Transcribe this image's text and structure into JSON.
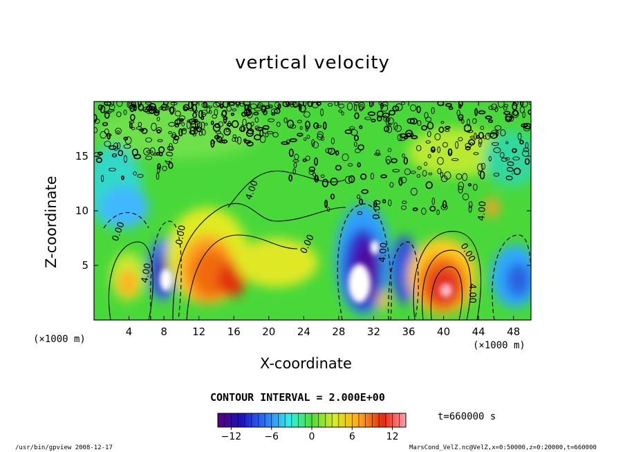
{
  "chart_data": {
    "type": "heatmap",
    "title": "vertical velocity",
    "xlabel": "X-coordinate",
    "ylabel": "Z-coordinate",
    "x_unit_left": "(×1000 m)",
    "x_unit_right": "(×1000 m)",
    "xlim": [
      0,
      50
    ],
    "ylim": [
      0,
      20
    ],
    "x_ticks": [
      4,
      8,
      12,
      16,
      20,
      24,
      28,
      32,
      36,
      40,
      44,
      48
    ],
    "y_ticks": [
      5,
      10,
      15
    ],
    "colorbar": {
      "range": [
        -14,
        14
      ],
      "ticks": [
        -12,
        -6,
        0,
        6,
        12
      ],
      "tick_labels": [
        "−12",
        "−6",
        "0",
        "6",
        "12"
      ]
    },
    "contour_interval_text": "CONTOUR INTERVAL = 2.000E+00",
    "contour_labels": [
      "4.00",
      "0.00",
      "0.00",
      "4.00",
      "0.00",
      "4.00",
      "0.00",
      "4.00",
      "0.00",
      "4.00",
      "0.00",
      "4.00"
    ],
    "features": [
      {
        "x": 3.8,
        "z": 3.3,
        "value": 5
      },
      {
        "x": 8.2,
        "z": 3.8,
        "value": -14
      },
      {
        "x": 13.5,
        "z": 4.8,
        "value": 9
      },
      {
        "x": 15.7,
        "z": 3.3,
        "value": 10
      },
      {
        "x": 19.5,
        "z": 5.5,
        "value": 5
      },
      {
        "x": 30.5,
        "z": 4.5,
        "value": -14
      },
      {
        "x": 32.5,
        "z": 1.8,
        "value": 4
      },
      {
        "x": 34.6,
        "z": 4.5,
        "value": -10
      },
      {
        "x": 40.2,
        "z": 2.9,
        "value": 14
      },
      {
        "x": 45.2,
        "z": 10.2,
        "value": 6
      },
      {
        "x": 48.5,
        "z": 4.0,
        "value": -8
      }
    ]
  },
  "time_label": "t=660000 s",
  "footer_left": "/usr/bin/gpview  2008-12-17",
  "footer_right": "MarsCond_VelZ.nc@VelZ,x=0:50000,z=0:20000,t=660000"
}
